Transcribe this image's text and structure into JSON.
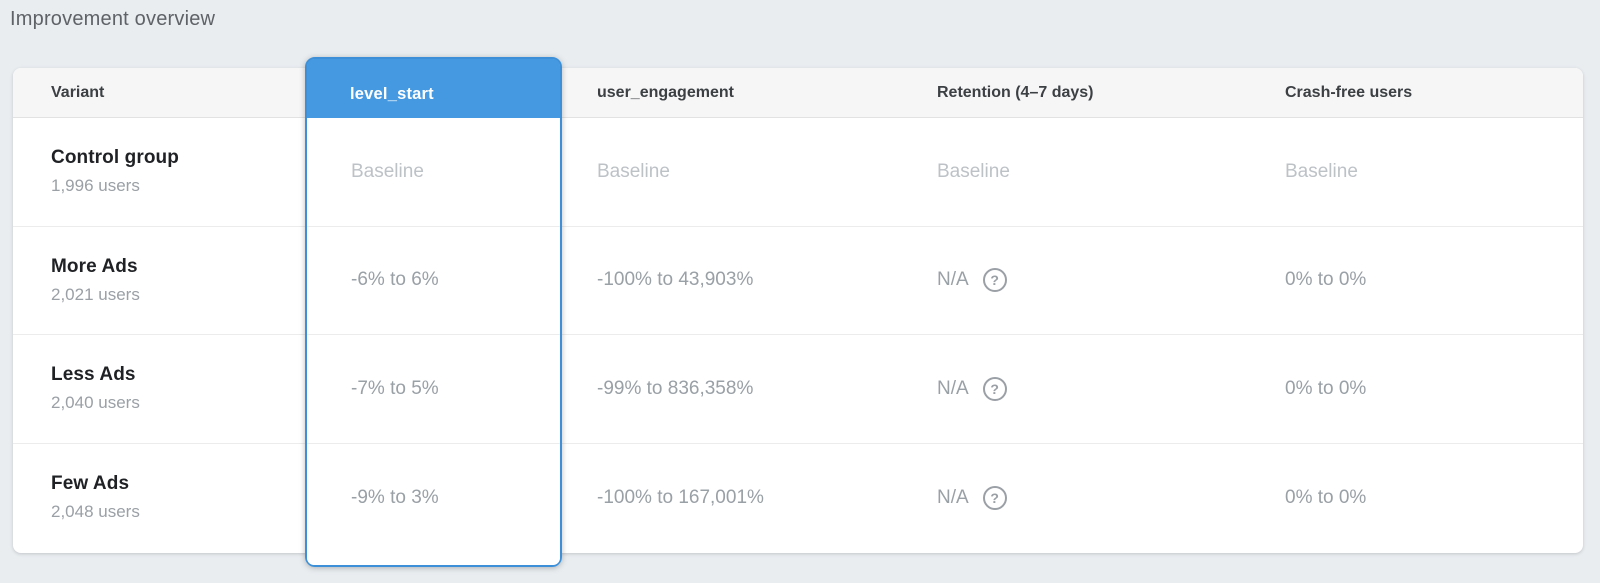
{
  "page": {
    "title": "Improvement overview"
  },
  "colors": {
    "accent_blue": "#4599e0",
    "accent_blue_border": "#3d90d8",
    "page_background": "#e9edf0",
    "header_row_background": "#f6f6f7"
  },
  "table": {
    "columns": [
      {
        "id": "variant",
        "label": "Variant"
      },
      {
        "id": "level_start",
        "label": "level_start",
        "selected": true
      },
      {
        "id": "user_engagement",
        "label": "user_engagement"
      },
      {
        "id": "retention",
        "label": "Retention (4–7 days)"
      },
      {
        "id": "crash_free",
        "label": "Crash-free users"
      }
    ],
    "help_icon": "?",
    "rows": [
      {
        "variant": "Control group",
        "users": "1,996 users",
        "level_start": "Baseline",
        "user_engagement": "Baseline",
        "retention": "Baseline",
        "crash_free": "Baseline",
        "is_baseline": true
      },
      {
        "variant": "More Ads",
        "users": "2,021 users",
        "level_start": "-6% to 6%",
        "user_engagement": "-100% to 43,903%",
        "retention": "N/A",
        "crash_free": "0% to 0%"
      },
      {
        "variant": "Less Ads",
        "users": "2,040 users",
        "level_start": "-7% to 5%",
        "user_engagement": "-99% to 836,358%",
        "retention": "N/A",
        "crash_free": "0% to 0%"
      },
      {
        "variant": "Few Ads",
        "users": "2,048 users",
        "level_start": "-9% to 3%",
        "user_engagement": "-100% to 167,001%",
        "retention": "N/A",
        "crash_free": "0% to 0%"
      }
    ]
  }
}
